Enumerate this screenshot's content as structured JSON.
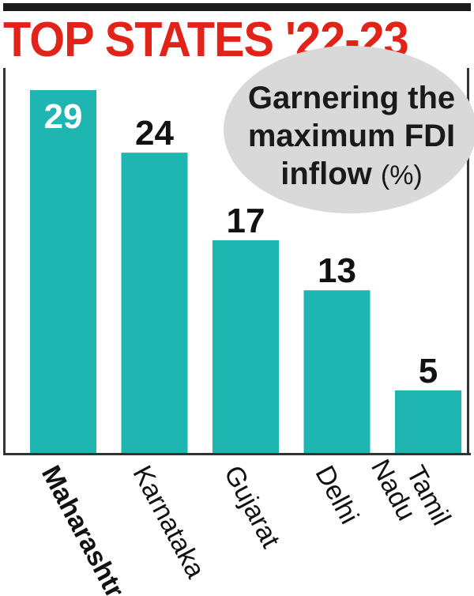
{
  "title": "TOP STATES '22-23",
  "subtitle_line1": "Garnering the",
  "subtitle_line2": "maximum FDI",
  "subtitle_line3": "inflow",
  "subtitle_unit": "(%)",
  "colors": {
    "bar": "#1fb5b0",
    "title": "#e2231a",
    "bubble": "#d9d9d9"
  },
  "chart_data": {
    "type": "bar",
    "title": "TOP STATES '22-23",
    "subtitle": "Garnering the maximum FDI inflow (%)",
    "categories": [
      "Maharashtra",
      "Karnataka",
      "Gujarat",
      "Delhi",
      "Tamil Nadu"
    ],
    "category_lines": [
      [
        "Maharashtra"
      ],
      [
        "Karnataka"
      ],
      [
        "Gujarat"
      ],
      [
        "Delhi"
      ],
      [
        "Tamil",
        "Nadu"
      ]
    ],
    "values": [
      29,
      24,
      17,
      13,
      5
    ],
    "ylim": [
      0,
      29
    ],
    "highlight_category": "Maharashtra",
    "grid": false
  }
}
